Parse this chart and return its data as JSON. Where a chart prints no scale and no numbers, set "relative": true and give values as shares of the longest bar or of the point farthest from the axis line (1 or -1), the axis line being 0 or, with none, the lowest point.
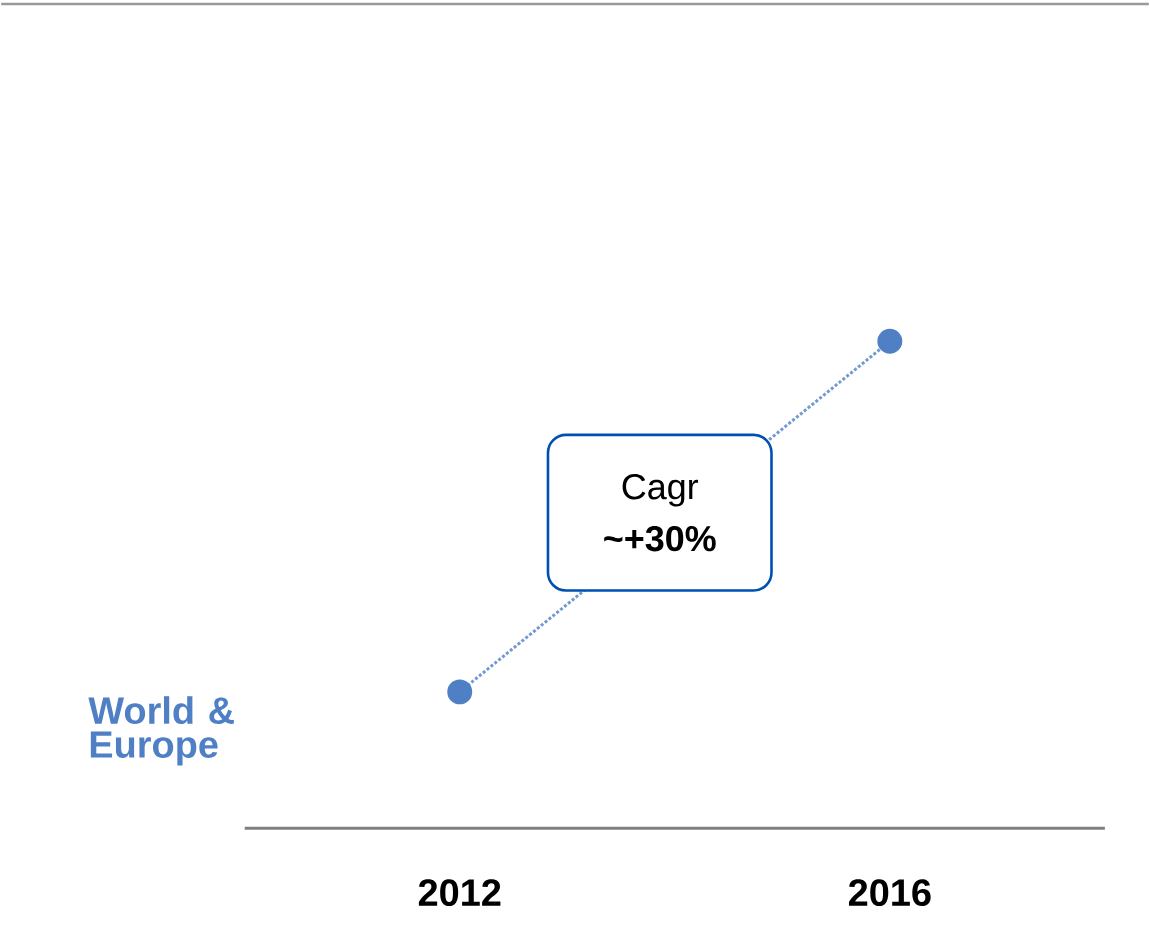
{
  "chart_data": {
    "type": "line",
    "relative": true,
    "categories": [
      "2012",
      "2016"
    ],
    "series": [
      {
        "name": "World & Europe",
        "color": "#4f7fc4",
        "values": [
          0.28,
          1
        ]
      }
    ],
    "marker": "circle",
    "line_style": "dotted",
    "annotations": [
      "Cagr **~+30%**"
    ]
  }
}
